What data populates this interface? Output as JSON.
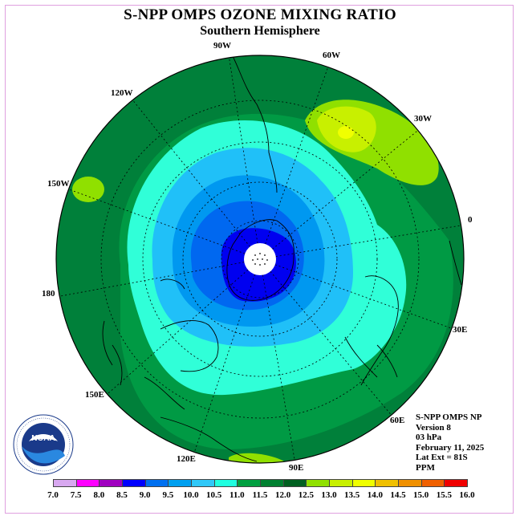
{
  "title": "S-NPP OMPS OZONE MIXING RATIO",
  "subtitle": "Southern Hemisphere",
  "longitude_labels": [
    "90W",
    "60W",
    "120W",
    "30W",
    "150W",
    "0",
    "180",
    "30E",
    "150E",
    "60E",
    "120E",
    "90E"
  ],
  "info": {
    "instrument": "S-NPP OMPS NP",
    "version": "Version 8",
    "level": "03 hPa",
    "date": "February 11, 2025",
    "lat_ext": "Lat Ext = 81S",
    "units": "PPM"
  },
  "logo": {
    "text": "NOAA",
    "ring_text": "NATIONAL OCEANIC AND ATMOSPHERIC ADMINISTRATION U.S. DEPARTMENT OF COMMERCE"
  },
  "colorbar": {
    "ticks": [
      "7.0",
      "7.5",
      "8.0",
      "8.5",
      "9.0",
      "9.5",
      "10.0",
      "10.5",
      "11.0",
      "11.5",
      "12.0",
      "12.5",
      "13.0",
      "13.5",
      "14.0",
      "14.5",
      "15.0",
      "15.5",
      "16.0"
    ],
    "colors": [
      "#b070f0",
      "#d8a8f0",
      "#ff00ff",
      "#a000c0",
      "#0000ff",
      "#0070f0",
      "#00a0f0",
      "#30c8f8",
      "#20ffe0",
      "#00a040",
      "#008030",
      "#006020",
      "#90e000",
      "#c8f000",
      "#f0ff00",
      "#f0c000",
      "#f09000",
      "#f06000",
      "#f00000",
      "#a06040"
    ]
  },
  "chart_data": {
    "type": "heatmap",
    "projection": "south-polar-stereographic",
    "variable": "ozone mixing ratio",
    "units": "PPM",
    "pressure_level_hPa": 3,
    "date": "February 11, 2025",
    "contour_levels": [
      7.0,
      7.5,
      8.0,
      8.5,
      9.0,
      9.5,
      10.0,
      10.5,
      11.0,
      11.5,
      12.0,
      12.5,
      13.0,
      13.5,
      14.0,
      14.5,
      15.0,
      15.5,
      16.0
    ],
    "regions": [
      {
        "area": "south pole core",
        "value_range": [
          9.0,
          9.5
        ]
      },
      {
        "area": "inner ring",
        "value_range": [
          9.5,
          10.0
        ]
      },
      {
        "area": "middle ring",
        "value_range": [
          10.0,
          10.5
        ]
      },
      {
        "area": "outer ring",
        "value_range": [
          10.5,
          11.0
        ]
      },
      {
        "area": "mid-latitudes",
        "value_range": [
          11.0,
          11.5
        ]
      },
      {
        "area": "outer latitudes",
        "value_range": [
          11.5,
          12.0
        ]
      },
      {
        "area": "south Atlantic maximum",
        "value_range": [
          12.5,
          13.5
        ]
      },
      {
        "area": "south Pacific spot",
        "value_range": [
          12.0,
          12.5
        ]
      }
    ]
  }
}
